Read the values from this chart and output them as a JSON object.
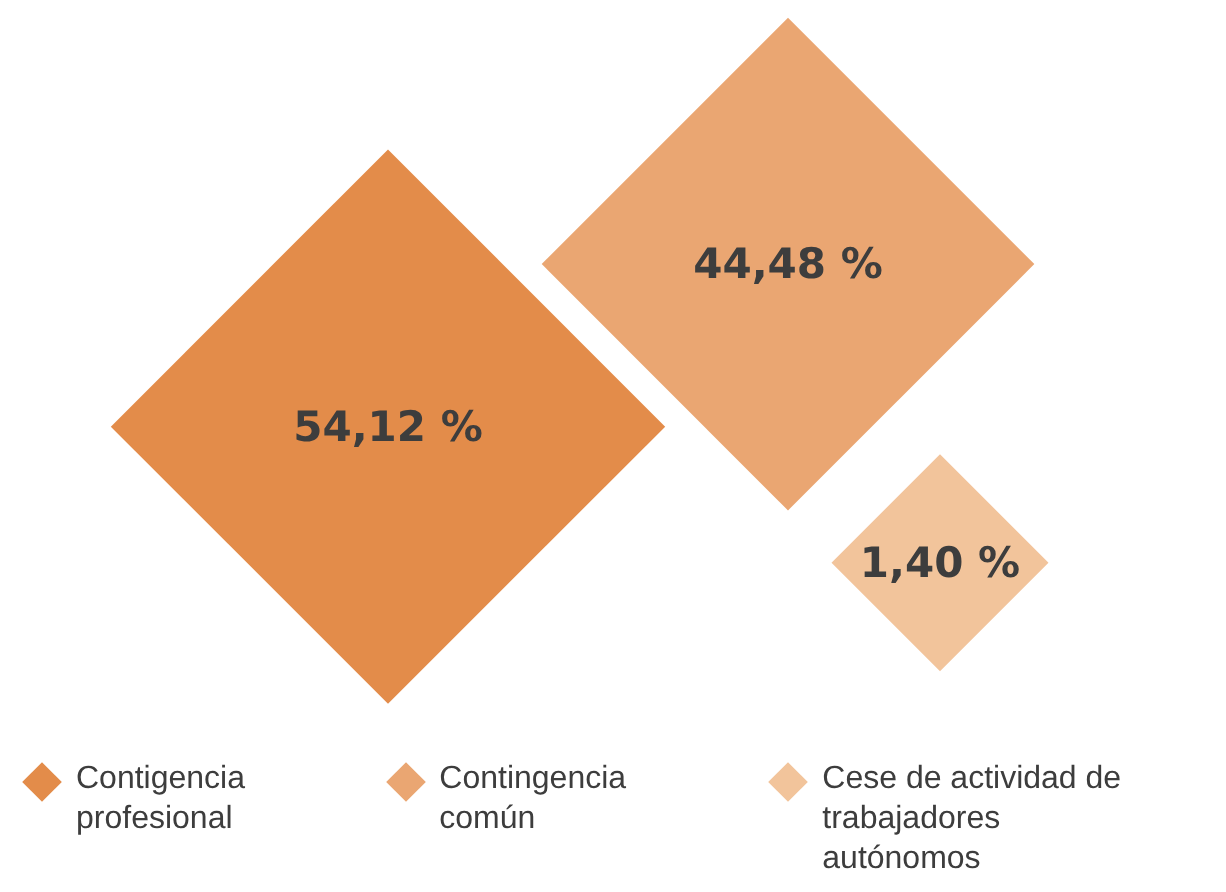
{
  "chart_data": {
    "type": "other",
    "categories": [
      "Contigencia profesional",
      "Contingencia común",
      "Cese de actividad de trabajadores autónomos"
    ],
    "values": [
      54.12,
      44.48,
      1.4
    ],
    "value_labels": [
      "54,12 %",
      "44,48 %",
      "1,40 %"
    ],
    "colors": [
      "#e38c4a",
      "#eaa672",
      "#f2c49b"
    ]
  }
}
